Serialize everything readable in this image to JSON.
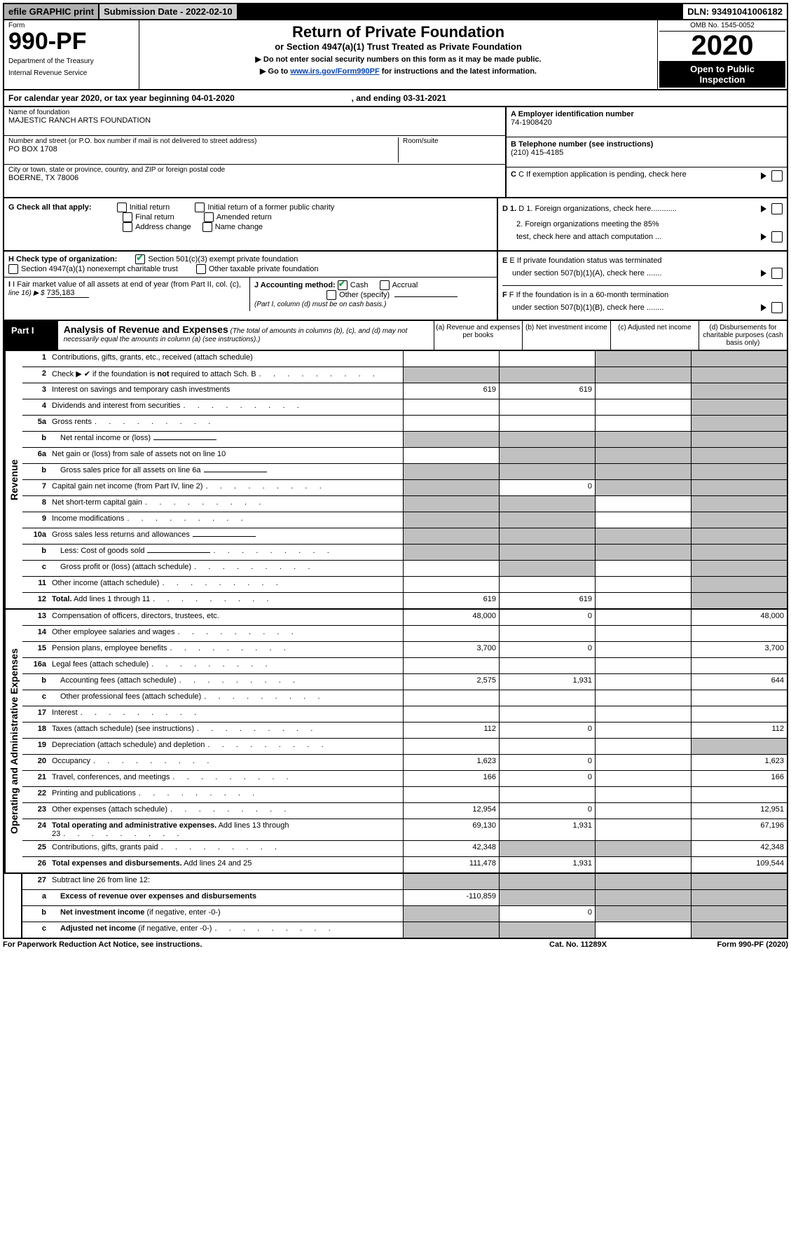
{
  "top_bar": {
    "efile": "efile GRAPHIC print",
    "sub_label": "Submission Date - 2022-02-10",
    "dln": "DLN: 93491041006182"
  },
  "header": {
    "form_word": "Form",
    "form_num": "990-PF",
    "dept1": "Department of the Treasury",
    "dept2": "Internal Revenue Service",
    "title": "Return of Private Foundation",
    "subtitle": "or Section 4947(a)(1) Trust Treated as Private Foundation",
    "instr1": "▶ Do not enter social security numbers on this form as it may be made public.",
    "instr2_pre": "▶ Go to ",
    "instr2_link": "www.irs.gov/Form990PF",
    "instr2_post": " for instructions and the latest information.",
    "omb": "OMB No. 1545-0052",
    "year": "2020",
    "open1": "Open to Public",
    "open2": "Inspection"
  },
  "cal": {
    "text_pre": "For calendar year 2020, or tax year beginning ",
    "begin": "04-01-2020",
    "mid": " , and ending ",
    "end": "03-31-2021"
  },
  "info": {
    "name_lbl": "Name of foundation",
    "name_val": "MAJESTIC RANCH ARTS FOUNDATION",
    "addr_lbl": "Number and street (or P.O. box number if mail is not delivered to street address)",
    "addr_val": "PO BOX 1708",
    "room_lbl": "Room/suite",
    "city_lbl": "City or town, state or province, country, and ZIP or foreign postal code",
    "city_val": "BOERNE, TX  78006",
    "a_lbl": "A Employer identification number",
    "a_val": "74-1908420",
    "b_lbl": "B Telephone number (see instructions)",
    "b_val": "(210) 415-4185",
    "c_lbl": "C If exemption application is pending, check here",
    "d1": "D 1. Foreign organizations, check here............",
    "d2a": "2. Foreign organizations meeting the 85%",
    "d2b": "test, check here and attach computation ...",
    "e1": "E If private foundation status was terminated",
    "e2": "under section 507(b)(1)(A), check here .......",
    "f1": "F If the foundation is in a 60-month termination",
    "f2": "under section 507(b)(1)(B), check here ........"
  },
  "g": {
    "lbl": "G Check all that apply:",
    "o1": "Initial return",
    "o2": "Final return",
    "o3": "Address change",
    "o4": "Initial return of a former public charity",
    "o5": "Amended return",
    "o6": "Name change"
  },
  "h": {
    "lbl": "H Check type of organization:",
    "o1": "Section 501(c)(3) exempt private foundation",
    "o2": "Section 4947(a)(1) nonexempt charitable trust",
    "o3": "Other taxable private foundation"
  },
  "i": {
    "lbl": "I Fair market value of all assets at end of year (from Part II, col. (c),",
    "line": "line 16) ▶ $",
    "val": "735,183"
  },
  "j": {
    "lbl": "J Accounting method:",
    "cash": "Cash",
    "accrual": "Accrual",
    "other": "Other (specify)",
    "note": "(Part I, column (d) must be on cash basis.)"
  },
  "part1": {
    "tab": "Part I",
    "title": "Analysis of Revenue and Expenses",
    "title_note": " (The total of amounts in columns (b), (c), and (d) may not necessarily equal the amounts in column (a) (see instructions).)",
    "col_a": "(a) Revenue and expenses per books",
    "col_b": "(b) Net investment income",
    "col_c": "(c) Adjusted net income",
    "col_d": "(d) Disbursements for charitable purposes (cash basis only)"
  },
  "sections": {
    "revenue_label": "Revenue",
    "opex_label": "Operating and Administrative Expenses"
  },
  "rows": [
    {
      "n": "1",
      "lbl": "Contributions, gifts, grants, etc., received (attach schedule)",
      "a": "",
      "b": "",
      "c": "shade",
      "d": "shade"
    },
    {
      "n": "2",
      "lbl": "Check ▶ ✔ if the foundation is <b>not</b> required to attach Sch. B",
      "dots": true,
      "a": "shade",
      "b": "shade",
      "c": "shade",
      "d": "shade"
    },
    {
      "n": "3",
      "lbl": "Interest on savings and temporary cash investments",
      "a": "619",
      "b": "619",
      "c": "",
      "d": "shade"
    },
    {
      "n": "4",
      "lbl": "Dividends and interest from securities",
      "dots": true,
      "a": "",
      "b": "",
      "c": "",
      "d": "shade"
    },
    {
      "n": "5a",
      "lbl": "Gross rents",
      "dots": true,
      "a": "",
      "b": "",
      "c": "",
      "d": "shade"
    },
    {
      "n": "b",
      "lbl": "Net rental income or (loss)",
      "inset": true,
      "short": true,
      "a": "shade",
      "b": "shade",
      "c": "shade",
      "d": "shade"
    },
    {
      "n": "6a",
      "lbl": "Net gain or (loss) from sale of assets not on line 10",
      "a": "",
      "b": "shade",
      "c": "shade",
      "d": "shade"
    },
    {
      "n": "b",
      "lbl": "Gross sales price for all assets on line 6a",
      "inset": true,
      "short": true,
      "a": "shade",
      "b": "shade",
      "c": "shade",
      "d": "shade"
    },
    {
      "n": "7",
      "lbl": "Capital gain net income (from Part IV, line 2)",
      "dots": true,
      "a": "shade",
      "b": "0",
      "c": "shade",
      "d": "shade"
    },
    {
      "n": "8",
      "lbl": "Net short-term capital gain",
      "dots": true,
      "a": "shade",
      "b": "shade",
      "c": "",
      "d": "shade"
    },
    {
      "n": "9",
      "lbl": "Income modifications",
      "dots": true,
      "a": "shade",
      "b": "shade",
      "c": "",
      "d": "shade"
    },
    {
      "n": "10a",
      "lbl": "Gross sales less returns and allowances",
      "short": true,
      "a": "shade",
      "b": "shade",
      "c": "shade",
      "d": "shade"
    },
    {
      "n": "b",
      "lbl": "Less: Cost of goods sold",
      "inset": true,
      "dots": true,
      "short": true,
      "a": "shade",
      "b": "shade",
      "c": "shade",
      "d": "shade"
    },
    {
      "n": "c",
      "lbl": "Gross profit or (loss) (attach schedule)",
      "inset": true,
      "dots": true,
      "a": "",
      "b": "shade",
      "c": "",
      "d": "shade"
    },
    {
      "n": "11",
      "lbl": "Other income (attach schedule)",
      "dots": true,
      "a": "",
      "b": "",
      "c": "",
      "d": "shade"
    },
    {
      "n": "12",
      "lbl": "<b>Total.</b> Add lines 1 through 11",
      "dots": true,
      "a": "619",
      "b": "619",
      "c": "",
      "d": "shade"
    }
  ],
  "opex_rows": [
    {
      "n": "13",
      "lbl": "Compensation of officers, directors, trustees, etc.",
      "a": "48,000",
      "b": "0",
      "c": "",
      "d": "48,000"
    },
    {
      "n": "14",
      "lbl": "Other employee salaries and wages",
      "dots": true,
      "a": "",
      "b": "",
      "c": "",
      "d": ""
    },
    {
      "n": "15",
      "lbl": "Pension plans, employee benefits",
      "dots": true,
      "a": "3,700",
      "b": "0",
      "c": "",
      "d": "3,700"
    },
    {
      "n": "16a",
      "lbl": "Legal fees (attach schedule)",
      "dots": true,
      "a": "",
      "b": "",
      "c": "",
      "d": ""
    },
    {
      "n": "b",
      "lbl": "Accounting fees (attach schedule)",
      "inset": true,
      "dots": true,
      "a": "2,575",
      "b": "1,931",
      "c": "",
      "d": "644"
    },
    {
      "n": "c",
      "lbl": "Other professional fees (attach schedule)",
      "inset": true,
      "dots": true,
      "a": "",
      "b": "",
      "c": "",
      "d": ""
    },
    {
      "n": "17",
      "lbl": "Interest",
      "dots": true,
      "a": "",
      "b": "",
      "c": "",
      "d": ""
    },
    {
      "n": "18",
      "lbl": "Taxes (attach schedule) (see instructions)",
      "dots": true,
      "a": "112",
      "b": "0",
      "c": "",
      "d": "112"
    },
    {
      "n": "19",
      "lbl": "Depreciation (attach schedule) and depletion",
      "dots": true,
      "a": "",
      "b": "",
      "c": "",
      "d": "shade"
    },
    {
      "n": "20",
      "lbl": "Occupancy",
      "dots": true,
      "a": "1,623",
      "b": "0",
      "c": "",
      "d": "1,623"
    },
    {
      "n": "21",
      "lbl": "Travel, conferences, and meetings",
      "dots": true,
      "a": "166",
      "b": "0",
      "c": "",
      "d": "166"
    },
    {
      "n": "22",
      "lbl": "Printing and publications",
      "dots": true,
      "a": "",
      "b": "",
      "c": "",
      "d": ""
    },
    {
      "n": "23",
      "lbl": "Other expenses (attach schedule)",
      "dots": true,
      "a": "12,954",
      "b": "0",
      "c": "",
      "d": "12,951"
    },
    {
      "n": "24",
      "lbl": "<b>Total operating and administrative expenses.</b> Add lines 13 through 23",
      "dots": true,
      "a": "69,130",
      "b": "1,931",
      "c": "",
      "d": "67,196"
    },
    {
      "n": "25",
      "lbl": "Contributions, gifts, grants paid",
      "dots": true,
      "a": "42,348",
      "b": "shade",
      "c": "shade",
      "d": "42,348"
    },
    {
      "n": "26",
      "lbl": "<b>Total expenses and disbursements.</b> Add lines 24 and 25",
      "a": "111,478",
      "b": "1,931",
      "c": "",
      "d": "109,544"
    }
  ],
  "bottom_rows": [
    {
      "n": "27",
      "lbl": "Subtract line 26 from line 12:",
      "a": "shade",
      "b": "shade",
      "c": "shade",
      "d": "shade"
    },
    {
      "n": "a",
      "lbl": "<b>Excess of revenue over expenses and disbursements</b>",
      "inset": true,
      "a": "-110,859",
      "b": "shade",
      "c": "shade",
      "d": "shade"
    },
    {
      "n": "b",
      "lbl": "<b>Net investment income</b> (if negative, enter -0-)",
      "inset": true,
      "a": "shade",
      "b": "0",
      "c": "shade",
      "d": "shade"
    },
    {
      "n": "c",
      "lbl": "<b>Adjusted net income</b> (if negative, enter -0-)",
      "inset": true,
      "dots": true,
      "a": "shade",
      "b": "shade",
      "c": "",
      "d": "shade"
    }
  ],
  "footer": {
    "left": "For Paperwork Reduction Act Notice, see instructions.",
    "mid": "Cat. No. 11289X",
    "right": "Form 990-PF (2020)"
  }
}
